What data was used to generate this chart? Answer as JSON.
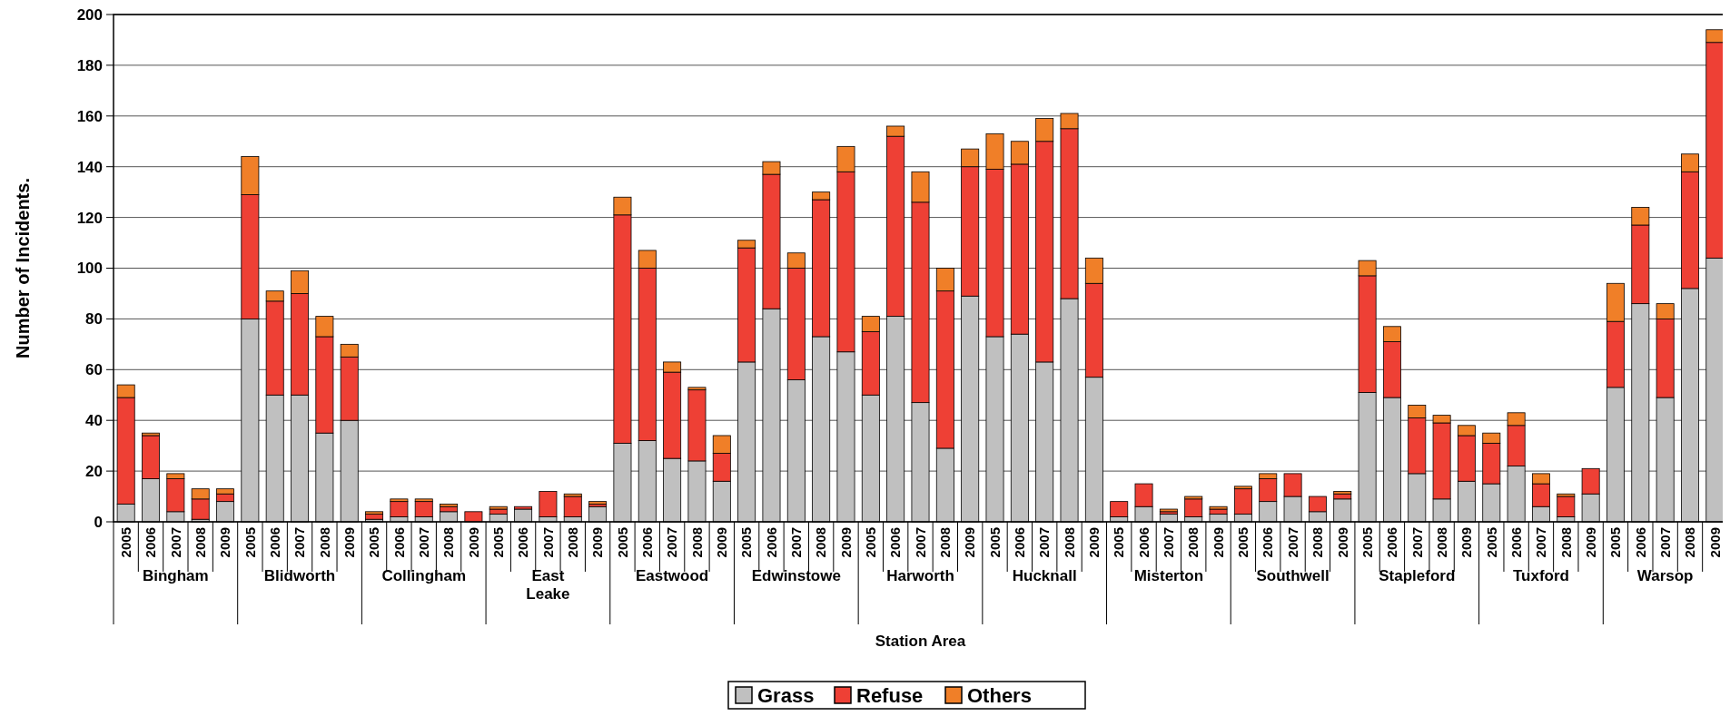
{
  "chart_data": {
    "type": "bar",
    "stacked": true,
    "xlabel": "Station Area",
    "ylabel": "Number of Incidents.",
    "categories": [
      "2005",
      "2006",
      "2007",
      "2008",
      "2009",
      "2005",
      "2006",
      "2007",
      "2008",
      "2009",
      "2005",
      "2006",
      "2007",
      "2008",
      "2009",
      "2005",
      "2006",
      "2007",
      "2008",
      "2009",
      "2005",
      "2006",
      "2007",
      "2008",
      "2009",
      "2005",
      "2006",
      "2007",
      "2008",
      "2009",
      "2005",
      "2006",
      "2007",
      "2008",
      "2009",
      "2005",
      "2006",
      "2007",
      "2008",
      "2009",
      "2005",
      "2006",
      "2007",
      "2008",
      "2009",
      "2005",
      "2006",
      "2007",
      "2008",
      "2009",
      "2005",
      "2006",
      "2007",
      "2008",
      "2009",
      "2005",
      "2006",
      "2007",
      "2008",
      "2009",
      "2005",
      "2006",
      "2007",
      "2008",
      "2009"
    ],
    "annotations": [
      "Bingham",
      "Blidworth",
      "Collingham",
      "East Leake",
      "Eastwood",
      "Edwinstowe",
      "Harworth",
      "Hucknall",
      "Misterton",
      "Southwell",
      "Stapleford",
      "Tuxford",
      "Warsop"
    ],
    "series": [
      {
        "name": "Grass",
        "color": "#c0c0c0",
        "values": [
          7,
          17,
          4,
          1,
          8,
          80,
          50,
          50,
          35,
          40,
          1,
          2,
          2,
          4,
          0,
          3,
          5,
          2,
          2,
          6,
          31,
          32,
          25,
          24,
          16,
          63,
          84,
          56,
          73,
          67,
          50,
          81,
          47,
          29,
          89,
          73,
          74,
          63,
          88,
          57,
          2,
          6,
          3,
          2,
          3,
          3,
          8,
          10,
          4,
          9,
          51,
          49,
          19,
          9,
          16,
          15,
          22,
          6,
          2,
          11,
          53,
          86,
          49,
          92,
          104
        ]
      },
      {
        "name": "Refuse",
        "color": "#ee4035",
        "values": [
          42,
          17,
          13,
          8,
          3,
          49,
          37,
          40,
          38,
          25,
          2,
          6,
          6,
          2,
          4,
          2,
          1,
          10,
          8,
          1,
          90,
          68,
          34,
          28,
          11,
          45,
          53,
          44,
          54,
          71,
          25,
          71,
          79,
          62,
          51,
          66,
          67,
          87,
          67,
          37,
          6,
          9,
          1,
          7,
          2,
          10,
          9,
          9,
          6,
          2,
          46,
          22,
          22,
          30,
          18,
          16,
          16,
          9,
          8,
          10,
          26,
          31,
          31,
          46,
          85
        ]
      },
      {
        "name": "Others",
        "color": "#f07f28",
        "values": [
          5,
          1,
          2,
          4,
          2,
          15,
          4,
          9,
          8,
          5,
          1,
          1,
          1,
          1,
          0,
          1,
          0,
          0,
          1,
          1,
          7,
          7,
          4,
          1,
          7,
          3,
          5,
          6,
          3,
          10,
          6,
          4,
          12,
          9,
          7,
          14,
          9,
          9,
          6,
          10,
          0,
          0,
          1,
          1,
          1,
          1,
          2,
          0,
          0,
          1,
          6,
          6,
          5,
          3,
          4,
          4,
          5,
          4,
          1,
          0,
          15,
          7,
          6,
          7,
          5
        ]
      }
    ],
    "ylim": [
      0,
      200
    ],
    "yticks": [
      0,
      20,
      40,
      60,
      80,
      100,
      120,
      140,
      160,
      180,
      200
    ],
    "grid": "y",
    "legend": "bottom"
  }
}
